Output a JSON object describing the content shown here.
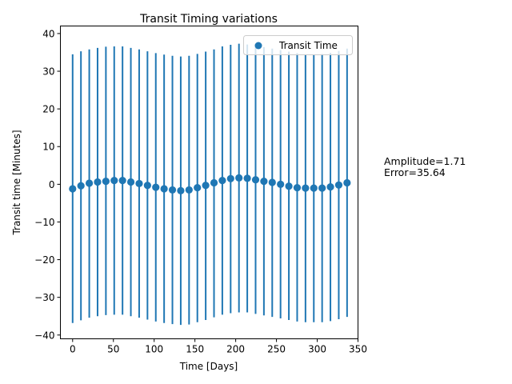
{
  "chart_data": {
    "type": "scatter",
    "title": "Transit Timing variations",
    "xlabel": "Time [Days]",
    "ylabel": "Transit time [Minutes]",
    "xlim": [
      -15,
      350
    ],
    "ylim": [
      -41,
      42
    ],
    "x_ticks": [
      0,
      50,
      100,
      150,
      200,
      250,
      300,
      350
    ],
    "y_ticks": [
      -40,
      -30,
      -20,
      -10,
      0,
      10,
      20,
      30,
      40
    ],
    "grid": false,
    "legend_position": "top-right",
    "series": [
      {
        "name": "Transit Time",
        "color": "#1f77b4",
        "x": [
          0,
          10.2,
          20.4,
          30.6,
          40.8,
          51.0,
          61.2,
          71.4,
          81.6,
          91.8,
          102.0,
          112.2,
          122.4,
          132.6,
          142.8,
          153.0,
          163.2,
          173.4,
          183.6,
          193.8,
          204.0,
          214.2,
          224.4,
          234.6,
          244.8,
          255.0,
          265.2,
          275.4,
          285.6,
          295.8,
          306.0,
          316.2,
          326.4,
          336.6
        ],
        "y": [
          -1.2,
          -0.4,
          0.3,
          0.6,
          0.8,
          1.0,
          1.0,
          0.6,
          0.2,
          -0.3,
          -0.8,
          -1.2,
          -1.5,
          -1.7,
          -1.5,
          -0.9,
          -0.3,
          0.4,
          1.0,
          1.5,
          1.7,
          1.6,
          1.2,
          0.8,
          0.5,
          0.0,
          -0.5,
          -0.9,
          -1.0,
          -1.0,
          -1.0,
          -0.7,
          -0.2,
          0.4
        ],
        "yerr_low": [
          -36.8,
          -36.1,
          -35.4,
          -35.0,
          -34.7,
          -34.6,
          -34.6,
          -35.0,
          -35.4,
          -35.9,
          -36.4,
          -36.8,
          -37.1,
          -37.3,
          -37.2,
          -36.6,
          -36.0,
          -35.3,
          -34.6,
          -34.2,
          -34.0,
          -34.0,
          -34.4,
          -34.8,
          -35.2,
          -35.6,
          -36.0,
          -36.4,
          -36.6,
          -36.6,
          -36.6,
          -36.3,
          -35.8,
          -35.2
        ],
        "yerr_high": [
          34.5,
          35.3,
          35.8,
          36.2,
          36.5,
          36.6,
          36.6,
          36.2,
          35.8,
          35.3,
          34.8,
          34.4,
          34.1,
          33.9,
          34.1,
          34.6,
          35.2,
          35.8,
          36.6,
          37.0,
          37.3,
          37.1,
          36.8,
          36.4,
          36.0,
          35.6,
          35.2,
          34.8,
          34.5,
          34.5,
          34.6,
          34.9,
          35.4,
          36.0
        ]
      }
    ]
  },
  "annotation": {
    "amplitude": "Amplitude=1.71",
    "error": "Error=35.64"
  }
}
